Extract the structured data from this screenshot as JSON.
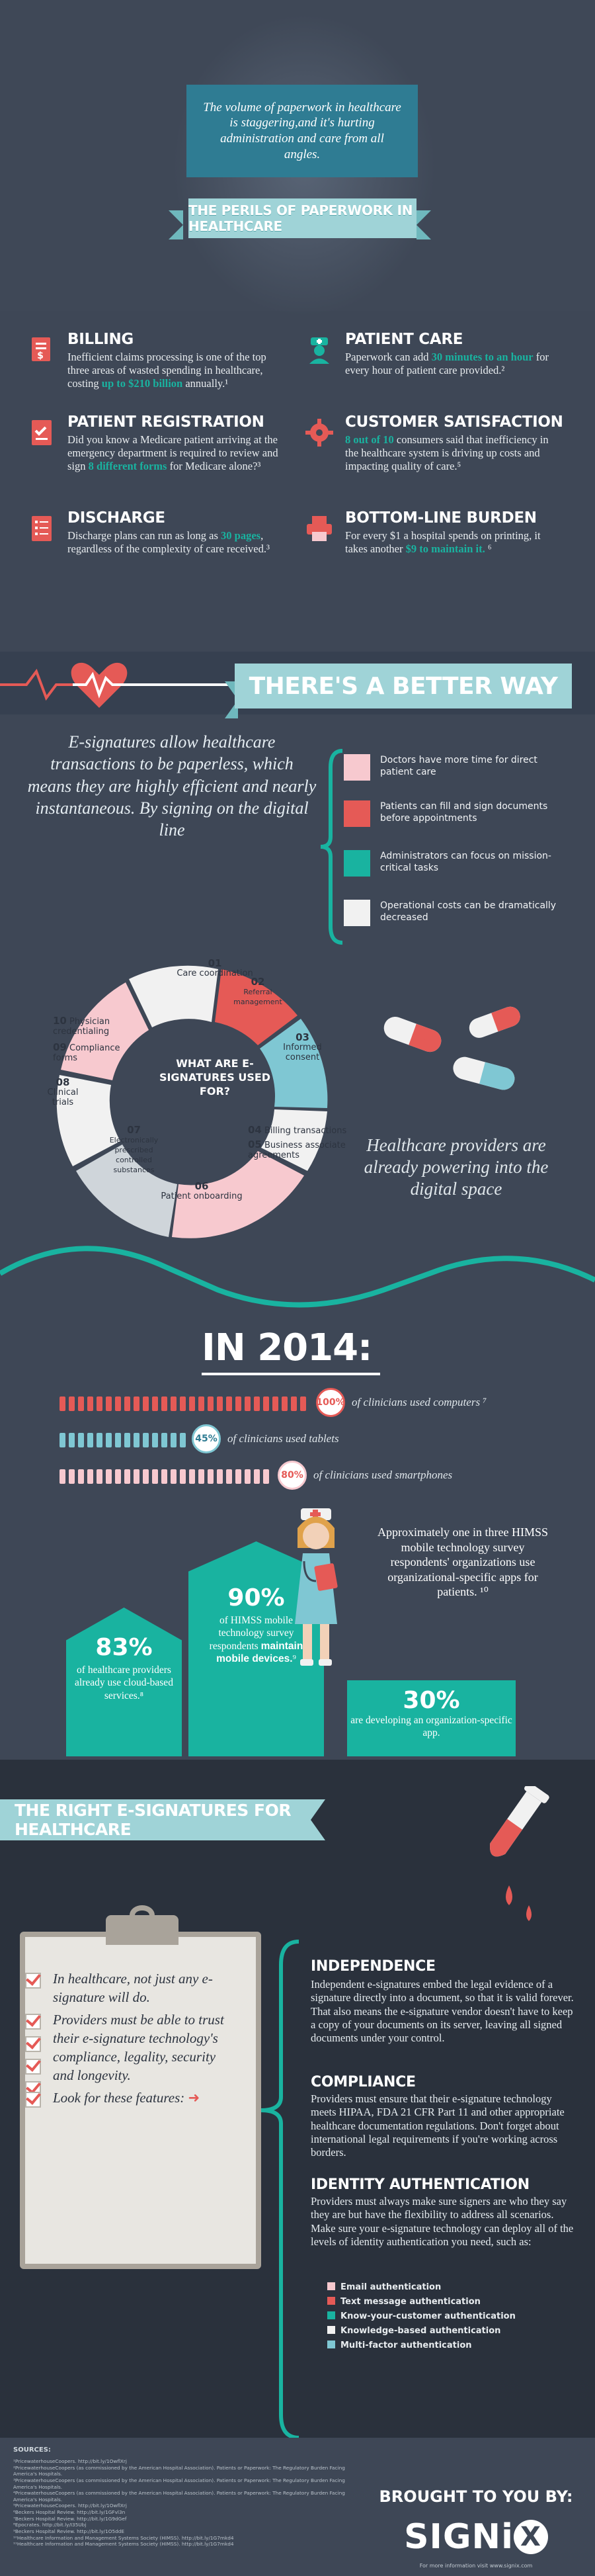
{
  "intro": "The volume of paperwork in healthcare is staggering,and it's hurting administration and care from all angles.",
  "title": "THE PERILS OF PAPERWORK IN HEALTHCARE",
  "perils": {
    "billing": {
      "title": "BILLING",
      "pre": "Inefficient claims processing is one of the top three areas of wasted spending in healthcare, costing ",
      "hl": "up to $210 billion",
      "post": " annually.¹"
    },
    "patient_care": {
      "title": "PATIENT CARE",
      "pre": "Paperwork can add ",
      "hl": "30 minutes to an hour",
      "post": " for every hour of patient care provided.²"
    },
    "registration": {
      "title": "PATIENT REGISTRATION",
      "pre": "Did you know a Medicare patient arriving at the emergency department is required to review and sign ",
      "hl": "8 different forms",
      "post": " for Medicare alone?³"
    },
    "satisfaction": {
      "title": "CUSTOMER SATISFACTION",
      "pre": "",
      "hl": "8 out of 10",
      "post": " consumers said that inefficiency in the healthcare system is driving up costs and impacting quality of care.⁵"
    },
    "discharge": {
      "title": "DISCHARGE",
      "pre": "Discharge plans can run as long as ",
      "hl": "30 pages",
      "post": ", regardless of the complexity of care received.³"
    },
    "burden": {
      "title": "BOTTOM-LINE BURDEN",
      "pre": "For every $1 a hospital spends on printing, it takes another ",
      "hl": "$9 to maintain it.",
      "post": " ⁶"
    }
  },
  "better_way": {
    "title": "THERE'S A BETTER WAY",
    "text": "E-signatures allow healthcare transactions to be paperless, which means they are highly efficient and nearly instantaneous. By signing on the digital line",
    "benefits": [
      {
        "label": "Doctors have more time for direct patient care",
        "color": "#f7c9cf"
      },
      {
        "label": "Patients can fill and sign documents before appointments",
        "color": "#e55a56"
      },
      {
        "label": "Administrators can focus on mission-critical tasks",
        "color": "#19b3a0"
      },
      {
        "label": "Operational costs can be dramatically decreased",
        "color": "#f1f1f1"
      }
    ]
  },
  "uses": {
    "question": "WHAT ARE E-SIGNATURES USED FOR?",
    "items": [
      {
        "n": "01",
        "label": "Care coordination"
      },
      {
        "n": "02",
        "label": "Referral management"
      },
      {
        "n": "03",
        "label": "Informed consent"
      },
      {
        "n": "04",
        "label": "Billing transactions"
      },
      {
        "n": "05",
        "label": "Business associate agreements"
      },
      {
        "n": "06",
        "label": "Patient onboarding"
      },
      {
        "n": "07",
        "label": "Electronically prescribed controlled substances"
      },
      {
        "n": "08",
        "label": "Clinical trials"
      },
      {
        "n": "09",
        "label": "Compliance forms"
      },
      {
        "n": "10",
        "label": "Physician credentialing"
      }
    ]
  },
  "providers_text": "Healthcare providers are already powering into the digital space",
  "y2014": {
    "title": "IN 2014:",
    "rows": [
      {
        "pct": "100%",
        "label": "of clinicians used computers ⁷",
        "value": 100,
        "color": "#e55a56"
      },
      {
        "pct": "45%",
        "label": "of clinicians used tablets",
        "value": 45,
        "color": "#7fc7d3"
      },
      {
        "pct": "80%",
        "label": "of clinicians used smartphones",
        "value": 80,
        "color": "#f7c9cf"
      }
    ],
    "cloud": {
      "num": "83%",
      "text": "of healthcare providers already use cloud-based services.⁸"
    },
    "mobile": {
      "num": "90%",
      "pre": "of HIMSS mobile technology survey respondents ",
      "bold": "maintain mobile devices.",
      "post": "⁹"
    },
    "apps": "Approximately one in three HIMSS mobile technology survey respondents' organizations use organizational-specific apps for patients. ¹⁰",
    "app_dev": {
      "num": "30%",
      "text": "are developing an organization-specific app."
    }
  },
  "right_esig": {
    "title": "THE RIGHT E-SIGNATURES FOR HEALTHCARE",
    "checklist": [
      "In healthcare, not just any e-signature will do.",
      "Providers must be able to trust their e-signature technology's compliance, legality, security and longevity.",
      "Look for these features:"
    ],
    "independence": {
      "title": "INDEPENDENCE",
      "text": "Independent e-signatures embed the legal evidence of a signature directly into a document, so that it is valid forever. That also means the e-signature vendor doesn't have to keep a copy of your documents on its server, leaving all signed documents under your control."
    },
    "compliance": {
      "title": "COMPLIANCE",
      "text": "Providers must ensure that their e-signature technology meets HIPAA, FDA 21 CFR Part 11 and other appropriate healthcare documentation regulations. Don't forget about international legal requirements if you're working across borders."
    },
    "identity": {
      "title": "IDENTITY AUTHENTICATION",
      "text": "Providers must always make sure signers are who they say they are but have the flexibility to address all scenarios. Make sure your e-signature technology can deploy all of the levels of identity authentication you need, such as:"
    },
    "auth_methods": [
      {
        "label": "Email authentication",
        "color": "#f7c9cf"
      },
      {
        "label": "Text message authentication",
        "color": "#e55a56"
      },
      {
        "label": "Know-your-customer authentication",
        "color": "#19b3a0"
      },
      {
        "label": "Knowledge-based authentication",
        "color": "#f1f1f1"
      },
      {
        "label": "Multi-factor authentication",
        "color": "#7fc7d3"
      }
    ]
  },
  "footer": {
    "sources_title": "SOURCES:",
    "sources": [
      "¹PricewaterhouseCoopers. http://bit.ly/1OwflXrj",
      "²PricewaterhouseCoopers (as commissioned by the American Hospital Association). Patients or Paperwork: The Regulatory Burden Facing America's Hospitals.",
      "³PricewaterhouseCoopers (as commissioned by the American Hospital Association). Patients or Paperwork: The Regulatory Burden Facing America's Hospitals.",
      "⁴PricewaterhouseCoopers (as commissioned by the American Hospital Association). Patients or Paperwork: The Regulatory Burden Facing America's Hospitals.",
      "⁵PricewaterhouseCoopers. http://bit.ly/1OwflXrj",
      "⁶Beckers Hospital Review. http://bit.ly/1GFvl3n",
      "⁷Beckers Hospital Review. http://bit.ly/1G9dGef",
      "⁸Epocrates. http://bit.ly/I35Ubj",
      "⁹Beckers Hospital Review. http://bit.ly/1O5ddE",
      "¹⁰Healthcare Information and Management Systems Society (HIMSS). http://bit.ly/1G7mkd4",
      "¹¹Healthcare Information and Management Systems Society (HIMSS). http://bit.ly/1G7mkd4"
    ],
    "brought": "BROUGHT TO YOU BY:",
    "brand_left": "SIGNi",
    "brand_x": "X",
    "brand_sub": "For more information visit www.signix.com"
  }
}
